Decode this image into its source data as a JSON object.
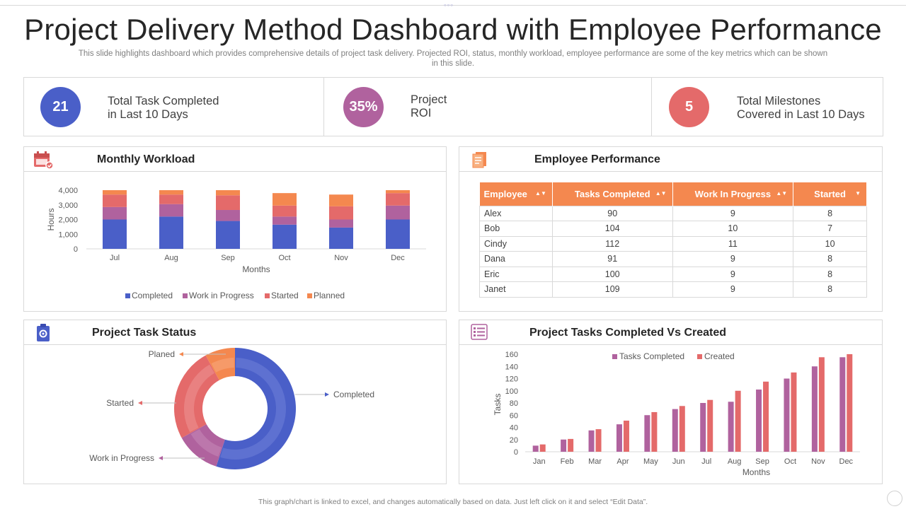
{
  "header": {
    "title": "Project Delivery Method Dashboard with Employee Performance",
    "subtitle": "This slide highlights dashboard which provides comprehensive details of project task delivery. Projected ROI, status, monthly workload, employee performance are some of the key metrics which can be shown in this slide."
  },
  "kpis": [
    {
      "value": "21",
      "label_line1": "Total Task Completed",
      "label_line2": "in Last 10 Days",
      "color": "#4a5fc8"
    },
    {
      "value": "35%",
      "label_line1": "Project",
      "label_line2": "ROI",
      "color": "#b0629e"
    },
    {
      "value": "5",
      "label_line1": "Total Milestones",
      "label_line2": "Covered in Last 10 Days",
      "color": "#e46a6a"
    }
  ],
  "panels": {
    "workload_title": "Monthly Workload",
    "employee_title": "Employee Performance",
    "status_title": "Project Task Status",
    "tasks_title": "Project Tasks Completed Vs Created"
  },
  "colors": {
    "completed": "#4a5fc8",
    "in_progress": "#b0629e",
    "started": "#e46a6a",
    "planned": "#f4884f",
    "table_header": "#f4884f"
  },
  "employee_table": {
    "headers": [
      "Employee",
      "Tasks Completed",
      "Work In Progress",
      "Started"
    ],
    "rows": [
      [
        "Alex",
        "90",
        "9",
        "8"
      ],
      [
        "Bob",
        "104",
        "10",
        "7"
      ],
      [
        "Cindy",
        "112",
        "11",
        "10"
      ],
      [
        "Dana",
        "91",
        "9",
        "8"
      ],
      [
        "Eric",
        "100",
        "9",
        "8"
      ],
      [
        "Janet",
        "109",
        "9",
        "8"
      ]
    ]
  },
  "footer": "This graph/chart is linked to excel, and changes automatically based on data. Just left click on it and select “Edit Data”.",
  "chart_data": [
    {
      "type": "bar",
      "stacked": true,
      "title": "Monthly Workload",
      "categories": [
        "Jul",
        "Aug",
        "Sep",
        "Oct",
        "Nov",
        "Dec"
      ],
      "series": [
        {
          "name": "Completed",
          "values": [
            2000,
            2200,
            1900,
            1650,
            1450,
            2000
          ]
        },
        {
          "name": "Work in Progress",
          "values": [
            850,
            850,
            750,
            550,
            550,
            950
          ]
        },
        {
          "name": "Started",
          "values": [
            850,
            650,
            1000,
            750,
            900,
            850
          ]
        },
        {
          "name": "Planned",
          "values": [
            300,
            300,
            350,
            850,
            800,
            200
          ]
        }
      ],
      "xlabel": "Months",
      "ylabel": "Hours",
      "ylim": [
        0,
        4000
      ],
      "yticks": [
        "0",
        "1,000",
        "2,000",
        "3,000",
        "4,000"
      ],
      "legend": "bottom"
    },
    {
      "type": "pie",
      "donut": true,
      "title": "Project Task Status",
      "labels": [
        "Completed",
        "Work in Progress",
        "Started",
        "Planed"
      ],
      "values": [
        55,
        12,
        25,
        8
      ],
      "legend": "callouts"
    },
    {
      "type": "bar",
      "title": "Project Tasks Completed Vs Created",
      "categories": [
        "Jan",
        "Feb",
        "Mar",
        "Apr",
        "May",
        "Jun",
        "Jul",
        "Aug",
        "Sep",
        "Oct",
        "Nov",
        "Dec"
      ],
      "series": [
        {
          "name": "Tasks Completed",
          "values": [
            10,
            20,
            35,
            45,
            60,
            70,
            80,
            82,
            102,
            120,
            140,
            155
          ]
        },
        {
          "name": "Created",
          "values": [
            12,
            21,
            37,
            51,
            65,
            75,
            85,
            100,
            115,
            130,
            155,
            160
          ]
        }
      ],
      "xlabel": "Months",
      "ylabel": "Tasks",
      "ylim": [
        0,
        160
      ],
      "yticks": [
        "0",
        "20",
        "40",
        "60",
        "80",
        "100",
        "120",
        "140",
        "160"
      ],
      "legend": "top"
    }
  ]
}
